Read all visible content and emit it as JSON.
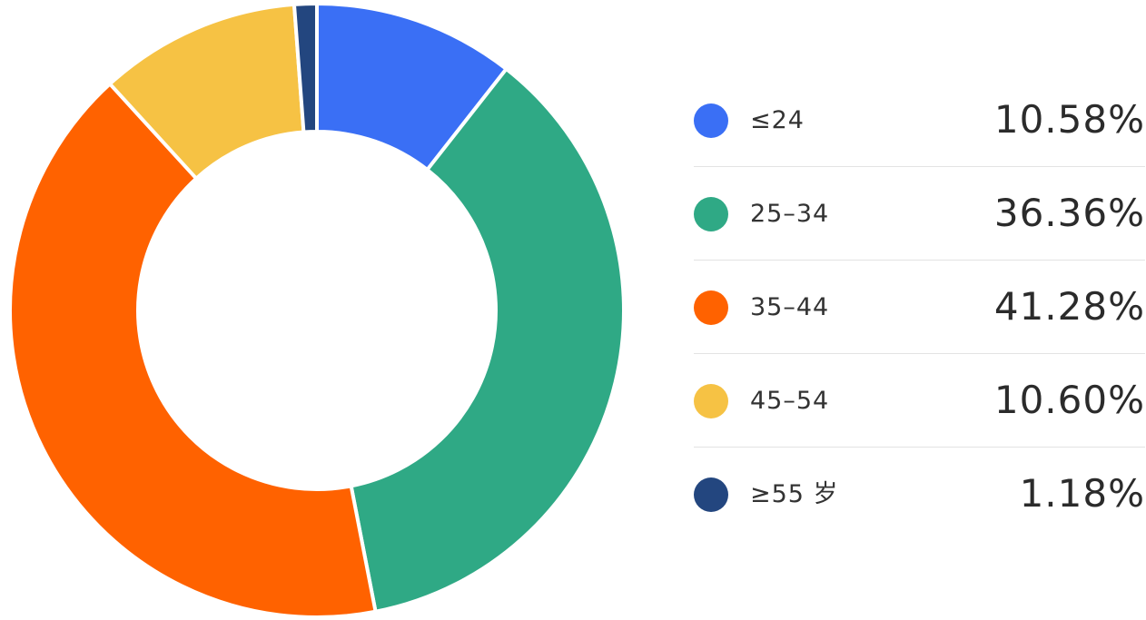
{
  "chart_data": {
    "type": "pie",
    "variant": "donut",
    "categories": [
      "≤24",
      "25–34",
      "35–44",
      "45–54",
      "≥55 岁"
    ],
    "values": [
      10.58,
      36.36,
      41.28,
      10.6,
      1.18
    ],
    "value_labels": [
      "10.58%",
      "36.36%",
      "41.28%",
      "10.60%",
      "1.18%"
    ],
    "colors": [
      "#3a6ff5",
      "#2fa985",
      "#ff6200",
      "#f6c244",
      "#23467f"
    ],
    "title": "",
    "legend_position": "right"
  }
}
